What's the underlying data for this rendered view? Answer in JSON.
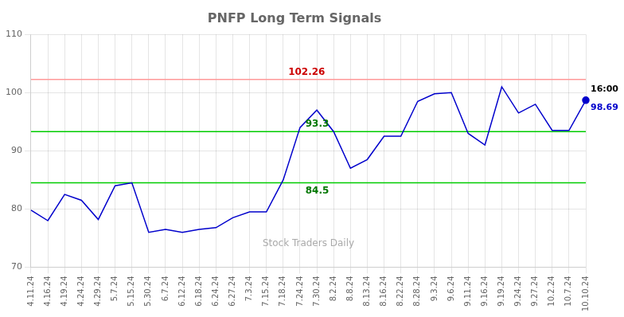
{
  "chart_data": {
    "type": "line",
    "title": "PNFP Long Term Signals",
    "categories": [
      "4.11.24",
      "4.16.24",
      "4.19.24",
      "4.24.24",
      "4.29.24",
      "5.7.24",
      "5.15.24",
      "5.30.24",
      "6.7.24",
      "6.12.24",
      "6.18.24",
      "6.24.24",
      "6.27.24",
      "7.3.24",
      "7.15.24",
      "7.18.24",
      "7.24.24",
      "7.30.24",
      "8.2.24",
      "8.8.24",
      "8.13.24",
      "8.16.24",
      "8.22.24",
      "8.28.24",
      "9.3.24",
      "9.6.24",
      "9.11.24",
      "9.16.24",
      "9.19.24",
      "9.24.24",
      "9.27.24",
      "10.2.24",
      "10.7.24",
      "10.10.24"
    ],
    "values": [
      79.8,
      78.0,
      82.5,
      81.5,
      78.2,
      84.0,
      84.5,
      76.0,
      76.5,
      76.0,
      76.5,
      76.8,
      78.5,
      79.5,
      79.5,
      85.0,
      94.0,
      97.0,
      93.3,
      87.0,
      88.5,
      92.5,
      92.5,
      98.5,
      99.8,
      100.0,
      93.0,
      91.0,
      101.0,
      96.5,
      98.0,
      93.5,
      93.5,
      98.69
    ],
    "value_labels": [
      null,
      null,
      null,
      null,
      null,
      null,
      null,
      null,
      null,
      null,
      null,
      null,
      null,
      null,
      null,
      null,
      null,
      null,
      null,
      null,
      null,
      null,
      null,
      null,
      null,
      null,
      null,
      null,
      null,
      null,
      null,
      null,
      null,
      "98.69"
    ],
    "color": "#0000CC",
    "hlines": [
      {
        "value": 102.26,
        "color": "#FF9999",
        "label": "102.26",
        "label_color": "#CC0000"
      },
      {
        "value": 93.3,
        "color": "#00CC00",
        "label": "93.3",
        "label_color": "#007700"
      },
      {
        "value": 84.5,
        "color": "#00CC00",
        "label": "84.5",
        "label_color": "#007700"
      }
    ],
    "annotations": [
      {
        "text": "16:00",
        "color": "#000000"
      },
      {
        "text": "Stock Traders Daily",
        "color": "#AAAAAA"
      }
    ],
    "ylim": [
      70,
      110
    ],
    "yticks": [
      70,
      80,
      90,
      100,
      110
    ],
    "grid": true
  }
}
